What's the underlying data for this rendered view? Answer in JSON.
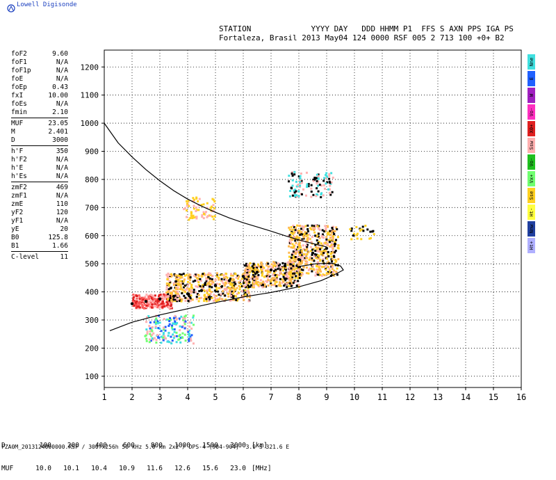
{
  "brand": "Lowell Digisonde",
  "header": {
    "line1": "STATION             YYYY DAY   DDD HHMM P1  FFS S AXN PPS IGA PS",
    "line2": "Fortaleza, Brasil 2013 May04 124 0000 RSF 005 2 713 100 +0+ B2"
  },
  "params": [
    [
      [
        "foF2",
        "9.60"
      ],
      [
        "foF1",
        "N/A"
      ],
      [
        "foF1p",
        "N/A"
      ],
      [
        "foE",
        "N/A"
      ],
      [
        "foEp",
        "0.43"
      ],
      [
        "fxI",
        "10.00"
      ],
      [
        "foEs",
        "N/A"
      ],
      [
        "fmin",
        "2.10"
      ]
    ],
    [
      [
        "MUF",
        "23.05"
      ],
      [
        "M",
        "2.401"
      ],
      [
        "D",
        "3000"
      ]
    ],
    [
      [
        "h'F",
        "350"
      ],
      [
        "h'F2",
        "N/A"
      ],
      [
        "h'E",
        "N/A"
      ],
      [
        "h'Es",
        "N/A"
      ]
    ],
    [
      [
        "zmF2",
        "469"
      ],
      [
        "zmF1",
        "N/A"
      ],
      [
        "zmE",
        "110"
      ],
      [
        "yF2",
        "120"
      ],
      [
        "yF1",
        "N/A"
      ],
      [
        "yE",
        "20"
      ],
      [
        "B0",
        "125.8"
      ],
      [
        "B1",
        "1.66"
      ]
    ],
    [
      [
        "C-level",
        "11"
      ]
    ]
  ],
  "legend": [
    {
      "label": "Nne",
      "color": "#40e0e0"
    },
    {
      "label": "E",
      "color": "#2060ff"
    },
    {
      "label": "W",
      "color": "#a020c0"
    },
    {
      "label": "Vo-",
      "color": "#ff30c0"
    },
    {
      "label": "X0+",
      "color": "#e02020"
    },
    {
      "label": "Ssw",
      "color": "#ffb0b0"
    },
    {
      "label": "Vo-",
      "color": "#20c020"
    },
    {
      "label": "Vx+",
      "color": "#70ff70"
    },
    {
      "label": "Sse",
      "color": "#ffd020"
    },
    {
      "label": "Ht-",
      "color": "#ffff40"
    },
    {
      "label": "Nnw",
      "color": "#2040a0"
    },
    {
      "label": "Ht+",
      "color": "#b0b0ff"
    }
  ],
  "muf_table": {
    "row1_label": "D",
    "row1": [
      "100",
      "200",
      "400",
      "600",
      "800",
      "1000",
      "1500",
      "3000"
    ],
    "row1_unit": "[km]",
    "row2_label": "MUF",
    "row2": [
      "10.0",
      "10.1",
      "10.4",
      "10.9",
      "11.6",
      "12.6",
      "15.6",
      "23.0"
    ],
    "row2_unit": "[MHz]"
  },
  "footer": "FZA0M_2013124000000.RSF / 300fx256h 50 kHz 5.0 km 2x2 / DPS-4 (904-904)  3.9 S 321.6 E",
  "chart_data": {
    "type": "scatter",
    "title": "",
    "xlabel": "",
    "ylabel": "",
    "xlim": [
      1,
      16
    ],
    "ylim": [
      60,
      1260
    ],
    "x_ticks": [
      1,
      2,
      3,
      4,
      5,
      6,
      7,
      8,
      9,
      10,
      11,
      12,
      13,
      14,
      15,
      16
    ],
    "y_ticks": [
      100,
      200,
      300,
      400,
      500,
      600,
      700,
      800,
      900,
      1000,
      1100,
      1200
    ],
    "grid": true,
    "series": [
      {
        "kind": "curve",
        "color": "#000000",
        "points": [
          [
            1.0,
            1000
          ],
          [
            1.5,
            930
          ],
          [
            2.0,
            880
          ],
          [
            2.5,
            835
          ],
          [
            3.0,
            795
          ],
          [
            3.5,
            760
          ],
          [
            4.0,
            730
          ],
          [
            4.5,
            705
          ],
          [
            5.0,
            683
          ],
          [
            5.5,
            663
          ],
          [
            6.0,
            646
          ],
          [
            6.5,
            631
          ],
          [
            7.0,
            616
          ],
          [
            7.5,
            600
          ],
          [
            8.0,
            585
          ],
          [
            8.5,
            572
          ],
          [
            9.0,
            560
          ]
        ]
      },
      {
        "kind": "curve",
        "color": "#000000",
        "points": [
          [
            1.2,
            262
          ],
          [
            2.0,
            292
          ],
          [
            3.0,
            318
          ],
          [
            4.0,
            340
          ],
          [
            5.0,
            362
          ],
          [
            6.0,
            382
          ],
          [
            7.0,
            398
          ],
          [
            8.0,
            418
          ],
          [
            8.8,
            440
          ],
          [
            9.3,
            462
          ],
          [
            9.6,
            478
          ],
          [
            9.5,
            492
          ],
          [
            9.2,
            502
          ],
          [
            8.6,
            500
          ],
          [
            8.0,
            490
          ]
        ]
      },
      {
        "kind": "points",
        "color": "#000000",
        "points": [
          [
            2.0,
            358
          ],
          [
            2.5,
            366
          ],
          [
            3.0,
            375
          ],
          [
            3.5,
            384
          ],
          [
            4.0,
            393
          ],
          [
            4.5,
            405
          ],
          [
            5.0,
            422
          ],
          [
            5.5,
            440
          ],
          [
            6.0,
            455
          ],
          [
            6.5,
            470
          ],
          [
            7.0,
            478
          ],
          [
            7.5,
            492
          ],
          [
            8.0,
            515
          ],
          [
            8.5,
            538
          ],
          [
            9.0,
            555
          ],
          [
            9.3,
            570
          ]
        ]
      }
    ]
  }
}
